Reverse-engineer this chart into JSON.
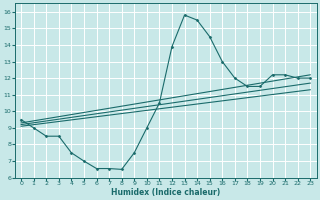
{
  "bg_color": "#c8e8e8",
  "grid_color": "#ffffff",
  "line_color": "#1a6b6b",
  "xlabel": "Humidex (Indice chaleur)",
  "xlim": [
    -0.5,
    23.5
  ],
  "ylim": [
    6,
    16.5
  ],
  "yticks": [
    6,
    7,
    8,
    9,
    10,
    11,
    12,
    13,
    14,
    15,
    16
  ],
  "xticks": [
    0,
    1,
    2,
    3,
    4,
    5,
    6,
    7,
    8,
    9,
    10,
    11,
    12,
    13,
    14,
    15,
    16,
    17,
    18,
    19,
    20,
    21,
    22,
    23
  ],
  "curve_x": [
    0,
    1,
    2,
    3,
    4,
    5,
    6,
    7,
    8,
    9,
    10,
    11,
    12,
    13,
    14,
    15,
    16,
    17,
    18,
    19,
    20,
    21,
    22,
    23
  ],
  "curve_y": [
    9.5,
    9.0,
    8.5,
    8.5,
    7.5,
    7.0,
    6.55,
    6.55,
    6.5,
    7.5,
    9.0,
    10.5,
    13.9,
    15.8,
    15.5,
    14.5,
    13.0,
    12.0,
    11.5,
    11.5,
    12.2,
    12.2,
    12.0,
    12.0
  ],
  "lines": [
    {
      "x": [
        0,
        23
      ],
      "y": [
        9.3,
        12.2
      ]
    },
    {
      "x": [
        0,
        23
      ],
      "y": [
        9.2,
        11.7
      ]
    },
    {
      "x": [
        0,
        23
      ],
      "y": [
        9.1,
        11.3
      ]
    }
  ]
}
